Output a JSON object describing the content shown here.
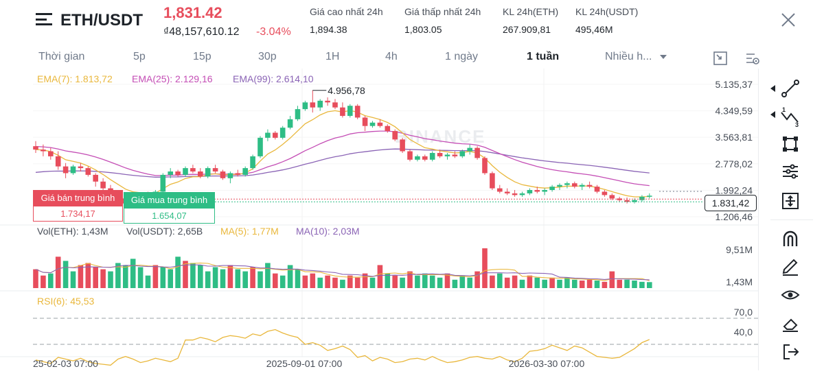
{
  "header": {
    "pair": "ETH/USDT",
    "price": "1,831.42",
    "price_vnd": "₫48,157,610.12",
    "change": "-3.04%",
    "stats": [
      {
        "label": "Giá cao nhất 24h",
        "value": "1,894.38"
      },
      {
        "label": "Giá thấp nhất 24h",
        "value": "1,803.05"
      },
      {
        "label": "KL 24h(ETH)",
        "value": "267.909,81"
      },
      {
        "label": "KL 24h(USDT)",
        "value": "495,46M"
      }
    ]
  },
  "tabs": [
    {
      "label": "Thời gian",
      "active": false
    },
    {
      "label": "5p",
      "active": false
    },
    {
      "label": "15p",
      "active": false
    },
    {
      "label": "30p",
      "active": false
    },
    {
      "label": "1H",
      "active": false
    },
    {
      "label": "4h",
      "active": false
    },
    {
      "label": "1 ngày",
      "active": false
    },
    {
      "label": "1 tuần",
      "active": true
    },
    {
      "label": "Nhiều h...",
      "active": false
    }
  ],
  "legend": {
    "ema7": "EMA(7): 1.813,72",
    "ema25": "EMA(25): 2.129,16",
    "ema99": "EMA(99): 2.614,10",
    "vol_eth": "Vol(ETH): 1,43M",
    "vol_usdt": "Vol(USDT): 2,65B",
    "ma5": "MA(5): 1,77M",
    "ma10": "MA(10): 2,03M",
    "rsi": "RSI(6): 45,53"
  },
  "colors": {
    "up": "#2ebd85",
    "down": "#e74d5c",
    "ema7": "#e9b73b",
    "ema25": "#c44db5",
    "ema99": "#8a63b5",
    "rsi": "#e9b73b"
  },
  "watermark": "BINANCE",
  "avg_sell": {
    "label": "Giá bán trung bình",
    "value": "1.734,17"
  },
  "avg_buy": {
    "label": "Giá mua trung bình",
    "value": "1.654,07"
  },
  "current_price_tag": "1.831,42",
  "chart_data": {
    "type": "candlestick",
    "price_axis": [
      "5.135,37",
      "4.349,59",
      "3.563,81",
      "2.778,02",
      "1.992,24",
      "1.206,46"
    ],
    "price_axis_values": [
      5135.37,
      4349.59,
      3563.81,
      2778.02,
      1992.24,
      1206.46
    ],
    "high_label": "4.956,78",
    "high_value": 4956.78,
    "volume_axis": [
      "9,51M",
      "1,43M"
    ],
    "rsi_levels": [
      70.0,
      40.0
    ],
    "rsi_labels": [
      "70,0",
      "40,0"
    ],
    "x_labels": [
      "25-02-03 07:00",
      "2025-09-01 07:00",
      "2026-03-30 07:00"
    ],
    "candles": [
      [
        3300,
        3450,
        3100,
        3200
      ],
      [
        3200,
        3350,
        3000,
        3150
      ],
      [
        3150,
        3250,
        2900,
        3000
      ],
      [
        3000,
        3150,
        2600,
        2700
      ],
      [
        2700,
        2800,
        2350,
        2500
      ],
      [
        2500,
        2750,
        2450,
        2700
      ],
      [
        2700,
        2800,
        2550,
        2650
      ],
      [
        2650,
        2700,
        2400,
        2450
      ],
      [
        2450,
        2500,
        2100,
        2250
      ],
      [
        2250,
        2350,
        1900,
        2050
      ],
      [
        2050,
        2150,
        1750,
        1850
      ],
      [
        1850,
        1950,
        1650,
        1750
      ],
      [
        1750,
        1850,
        1500,
        1600
      ],
      [
        1600,
        1750,
        1450,
        1700
      ],
      [
        1700,
        1900,
        1650,
        1850
      ],
      [
        1850,
        1950,
        1700,
        1800
      ],
      [
        1800,
        2000,
        1750,
        1950
      ],
      [
        1950,
        2500,
        1900,
        2450
      ],
      [
        2450,
        2650,
        2350,
        2550
      ],
      [
        2550,
        2600,
        2400,
        2450
      ],
      [
        2450,
        2700,
        2400,
        2650
      ],
      [
        2650,
        2750,
        2500,
        2550
      ],
      [
        2550,
        2650,
        2350,
        2400
      ],
      [
        2400,
        2700,
        2350,
        2650
      ],
      [
        2650,
        2750,
        2500,
        2550
      ],
      [
        2550,
        2600,
        2300,
        2350
      ],
      [
        2350,
        2550,
        2200,
        2500
      ],
      [
        2500,
        2600,
        2400,
        2450
      ],
      [
        2450,
        2700,
        2400,
        2650
      ],
      [
        2650,
        3050,
        2600,
        3000
      ],
      [
        3000,
        3600,
        2950,
        3550
      ],
      [
        3550,
        3800,
        3450,
        3700
      ],
      [
        3700,
        3750,
        3500,
        3550
      ],
      [
        3550,
        3900,
        3500,
        3850
      ],
      [
        3850,
        4200,
        3800,
        4100
      ],
      [
        4100,
        4500,
        4050,
        4400
      ],
      [
        4400,
        4650,
        4350,
        4600
      ],
      [
        4600,
        4956.78,
        4300,
        4450
      ],
      [
        4450,
        4700,
        4350,
        4650
      ],
      [
        4650,
        4750,
        4500,
        4600
      ],
      [
        4600,
        4700,
        4400,
        4450
      ],
      [
        4450,
        4600,
        4150,
        4200
      ],
      [
        4200,
        4550,
        4150,
        4500
      ],
      [
        4500,
        4550,
        4100,
        4150
      ],
      [
        4150,
        4200,
        3750,
        3900
      ],
      [
        3900,
        4050,
        3850,
        4000
      ],
      [
        4000,
        4100,
        3850,
        3900
      ],
      [
        3900,
        3950,
        3700,
        3750
      ],
      [
        3750,
        3800,
        3450,
        3500
      ],
      [
        3500,
        3550,
        3100,
        3150
      ],
      [
        3150,
        3200,
        2850,
        2900
      ],
      [
        2900,
        3050,
        2850,
        3000
      ],
      [
        3000,
        3050,
        2850,
        2900
      ],
      [
        2900,
        3150,
        2850,
        3100
      ],
      [
        3100,
        3200,
        2950,
        3000
      ],
      [
        3000,
        3100,
        2900,
        3050
      ],
      [
        3050,
        3150,
        2950,
        3000
      ],
      [
        3000,
        3200,
        2950,
        3150
      ],
      [
        3150,
        3350,
        3050,
        3250
      ],
      [
        3250,
        3300,
        2900,
        2950
      ],
      [
        2950,
        3000,
        2450,
        2500
      ],
      [
        2500,
        2550,
        2000,
        2050
      ],
      [
        2050,
        2150,
        1900,
        1950
      ],
      [
        1950,
        2050,
        1850,
        1900
      ],
      [
        1900,
        2000,
        1800,
        1850
      ],
      [
        1850,
        1950,
        1800,
        1900
      ],
      [
        1900,
        2050,
        1850,
        2000
      ],
      [
        2000,
        2100,
        1900,
        1950
      ],
      [
        1950,
        2050,
        1850,
        2000
      ],
      [
        2000,
        2150,
        1950,
        2100
      ],
      [
        2100,
        2200,
        2000,
        2150
      ],
      [
        2150,
        2250,
        2050,
        2200
      ],
      [
        2200,
        2250,
        2050,
        2100
      ],
      [
        2100,
        2200,
        2000,
        2150
      ],
      [
        2150,
        2250,
        2050,
        2100
      ],
      [
        2100,
        2150,
        1900,
        1950
      ],
      [
        1950,
        2000,
        1800,
        1850
      ],
      [
        1850,
        1900,
        1700,
        1750
      ],
      [
        1750,
        1800,
        1650,
        1700
      ],
      [
        1700,
        1780,
        1600,
        1650
      ],
      [
        1650,
        1750,
        1600,
        1700
      ],
      [
        1700,
        1850,
        1650,
        1800
      ],
      [
        1800,
        1900,
        1750,
        1831.42
      ]
    ],
    "volumes": [
      [
        4.5,
        0
      ],
      [
        3.0,
        0
      ],
      [
        3.5,
        1
      ],
      [
        7.5,
        0
      ],
      [
        6.5,
        1
      ],
      [
        4.0,
        1
      ],
      [
        5.5,
        0
      ],
      [
        6.0,
        0
      ],
      [
        5.0,
        0
      ],
      [
        4.5,
        0
      ],
      [
        4.0,
        1
      ],
      [
        6.0,
        1
      ],
      [
        5.5,
        1
      ],
      [
        7.0,
        1
      ],
      [
        5.0,
        1
      ],
      [
        3.0,
        1
      ],
      [
        5.5,
        0
      ],
      [
        5.0,
        1
      ],
      [
        4.5,
        1
      ],
      [
        7.5,
        1
      ],
      [
        6.5,
        0
      ],
      [
        6.0,
        1
      ],
      [
        5.5,
        1
      ],
      [
        4.0,
        1
      ],
      [
        5.0,
        1
      ],
      [
        4.5,
        1
      ],
      [
        5.5,
        0
      ],
      [
        4.5,
        1
      ],
      [
        4.0,
        1
      ],
      [
        5.0,
        0
      ],
      [
        4.0,
        1
      ],
      [
        6.0,
        1
      ],
      [
        3.5,
        0
      ],
      [
        3.0,
        1
      ],
      [
        5.5,
        1
      ],
      [
        4.5,
        1
      ],
      [
        3.0,
        0
      ],
      [
        3.5,
        0
      ],
      [
        2.5,
        1
      ],
      [
        3.0,
        0
      ],
      [
        2.5,
        0
      ],
      [
        2.0,
        1
      ],
      [
        3.0,
        0
      ],
      [
        2.5,
        0
      ],
      [
        3.5,
        0
      ],
      [
        2.5,
        1
      ],
      [
        5.5,
        0
      ],
      [
        3.5,
        1
      ],
      [
        3.0,
        0
      ],
      [
        2.5,
        1
      ],
      [
        4.0,
        0
      ],
      [
        3.0,
        1
      ],
      [
        3.5,
        1
      ],
      [
        3.0,
        1
      ],
      [
        2.5,
        1
      ],
      [
        3.5,
        0
      ],
      [
        2.0,
        1
      ],
      [
        3.0,
        1
      ],
      [
        2.5,
        1
      ],
      [
        4.0,
        0
      ],
      [
        9.51,
        0
      ],
      [
        3.0,
        0
      ],
      [
        3.5,
        1
      ],
      [
        2.5,
        0
      ],
      [
        3.0,
        0
      ],
      [
        2.0,
        1
      ],
      [
        3.0,
        0
      ],
      [
        2.5,
        1
      ],
      [
        2.0,
        1
      ],
      [
        2.5,
        0
      ],
      [
        2.0,
        1
      ],
      [
        2.5,
        1
      ],
      [
        2.0,
        1
      ],
      [
        1.8,
        0
      ],
      [
        2.0,
        0
      ],
      [
        1.8,
        1
      ],
      [
        1.5,
        0
      ],
      [
        4.0,
        0
      ],
      [
        2.0,
        0
      ],
      [
        2.0,
        1
      ],
      [
        1.8,
        1
      ],
      [
        1.5,
        1
      ],
      [
        1.43,
        1
      ]
    ],
    "rsi": [
      22,
      20,
      18,
      25,
      23,
      21,
      24,
      20,
      18,
      17,
      16,
      23,
      26,
      23,
      19,
      21,
      24,
      22,
      20,
      24,
      45,
      45,
      48,
      46,
      43,
      48,
      50,
      49,
      47,
      52,
      50,
      55,
      57,
      53,
      50,
      48,
      40,
      42,
      39,
      33,
      35,
      38,
      34,
      25,
      27,
      21,
      25,
      23,
      19,
      20,
      23,
      24,
      22,
      26,
      22,
      19,
      20,
      22,
      25,
      26,
      24,
      23,
      26,
      22,
      20,
      24,
      32,
      33,
      35,
      39,
      36,
      33,
      38,
      36,
      31,
      26,
      25,
      24,
      25,
      30,
      35,
      42,
      45.53
    ]
  }
}
